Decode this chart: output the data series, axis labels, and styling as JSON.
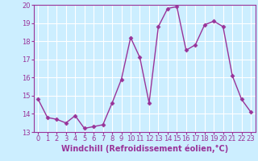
{
  "x": [
    0,
    1,
    2,
    3,
    4,
    5,
    6,
    7,
    8,
    9,
    10,
    11,
    12,
    13,
    14,
    15,
    16,
    17,
    18,
    19,
    20,
    21,
    22,
    23
  ],
  "y": [
    14.8,
    13.8,
    13.7,
    13.5,
    13.9,
    13.2,
    13.3,
    13.4,
    14.6,
    15.9,
    18.2,
    17.1,
    14.6,
    18.8,
    19.8,
    19.9,
    17.5,
    17.8,
    18.9,
    19.1,
    18.8,
    16.1,
    14.8,
    14.1
  ],
  "xlabel": "Windchill (Refroidissement éolien,°C)",
  "ylim": [
    13,
    20
  ],
  "xlim_min": -0.5,
  "xlim_max": 23.5,
  "yticks": [
    13,
    14,
    15,
    16,
    17,
    18,
    19,
    20
  ],
  "xticks": [
    0,
    1,
    2,
    3,
    4,
    5,
    6,
    7,
    8,
    9,
    10,
    11,
    12,
    13,
    14,
    15,
    16,
    17,
    18,
    19,
    20,
    21,
    22,
    23
  ],
  "line_color": "#993399",
  "marker_color": "#993399",
  "bg_color": "#cceeff",
  "grid_color": "#ffffff",
  "xlabel_text_color": "#993399",
  "xlabel_bg": "#cceeff",
  "marker": "D",
  "markersize": 2.5,
  "linewidth": 1.0,
  "tick_fontsize": 6,
  "xlabel_fontsize": 7
}
